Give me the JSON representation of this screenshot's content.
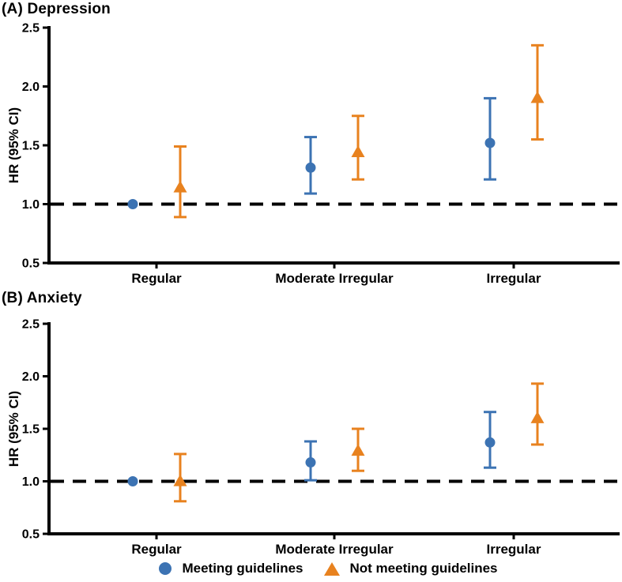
{
  "colors": {
    "meeting": "#3C73B3",
    "not_meeting": "#E8821F",
    "axis": "#000000",
    "reference_line": "#000000",
    "text": "#000000"
  },
  "legend": {
    "items": [
      {
        "label": "Meeting guidelines",
        "marker": "circle",
        "color": "#3C73B3"
      },
      {
        "label": "Not meeting guidelines",
        "marker": "triangle",
        "color": "#E8821F"
      }
    ]
  },
  "chart_data": [
    {
      "type": "scatter",
      "panel": "A",
      "title": "(A) Depression",
      "ylabel": "HR (95% CI)",
      "ylim": [
        0.5,
        2.5
      ],
      "yticks": [
        0.5,
        1.0,
        1.5,
        2.0,
        2.5
      ],
      "ytick_labels": [
        "0.5",
        "1.0",
        "1.5",
        "2.0",
        "2.5"
      ],
      "categories": [
        "Regular",
        "Moderate Irregular",
        "Irregular"
      ],
      "reference_line": 1.0,
      "grid": false,
      "series": [
        {
          "name": "Meeting guidelines",
          "marker": "circle",
          "color": "#3C73B3",
          "values": [
            {
              "category": "Regular",
              "hr": 1.0,
              "lo": null,
              "hi": null
            },
            {
              "category": "Moderate Irregular",
              "hr": 1.31,
              "lo": 1.09,
              "hi": 1.57
            },
            {
              "category": "Irregular",
              "hr": 1.52,
              "lo": 1.21,
              "hi": 1.9
            }
          ]
        },
        {
          "name": "Not meeting guidelines",
          "marker": "triangle",
          "color": "#E8821F",
          "values": [
            {
              "category": "Regular",
              "hr": 1.15,
              "lo": 0.89,
              "hi": 1.49
            },
            {
              "category": "Moderate Irregular",
              "hr": 1.45,
              "lo": 1.21,
              "hi": 1.75
            },
            {
              "category": "Irregular",
              "hr": 1.91,
              "lo": 1.55,
              "hi": 2.35
            }
          ]
        }
      ]
    },
    {
      "type": "scatter",
      "panel": "B",
      "title": "(B) Anxiety",
      "ylabel": "HR (95% CI)",
      "ylim": [
        0.5,
        2.5
      ],
      "yticks": [
        0.5,
        1.0,
        1.5,
        2.0,
        2.5
      ],
      "ytick_labels": [
        "0.5",
        "1.0",
        "1.5",
        "2.0",
        "2.5"
      ],
      "categories": [
        "Regular",
        "Moderate Irregular",
        "Irregular"
      ],
      "reference_line": 1.0,
      "grid": false,
      "series": [
        {
          "name": "Meeting guidelines",
          "marker": "circle",
          "color": "#3C73B3",
          "values": [
            {
              "category": "Regular",
              "hr": 1.0,
              "lo": null,
              "hi": null
            },
            {
              "category": "Moderate Irregular",
              "hr": 1.18,
              "lo": 1.01,
              "hi": 1.38
            },
            {
              "category": "Irregular",
              "hr": 1.37,
              "lo": 1.13,
              "hi": 1.66
            }
          ]
        },
        {
          "name": "Not meeting guidelines",
          "marker": "triangle",
          "color": "#E8821F",
          "values": [
            {
              "category": "Regular",
              "hr": 1.01,
              "lo": 0.81,
              "hi": 1.26
            },
            {
              "category": "Moderate Irregular",
              "hr": 1.3,
              "lo": 1.1,
              "hi": 1.5
            },
            {
              "category": "Irregular",
              "hr": 1.61,
              "lo": 1.35,
              "hi": 1.93
            }
          ]
        }
      ]
    }
  ]
}
